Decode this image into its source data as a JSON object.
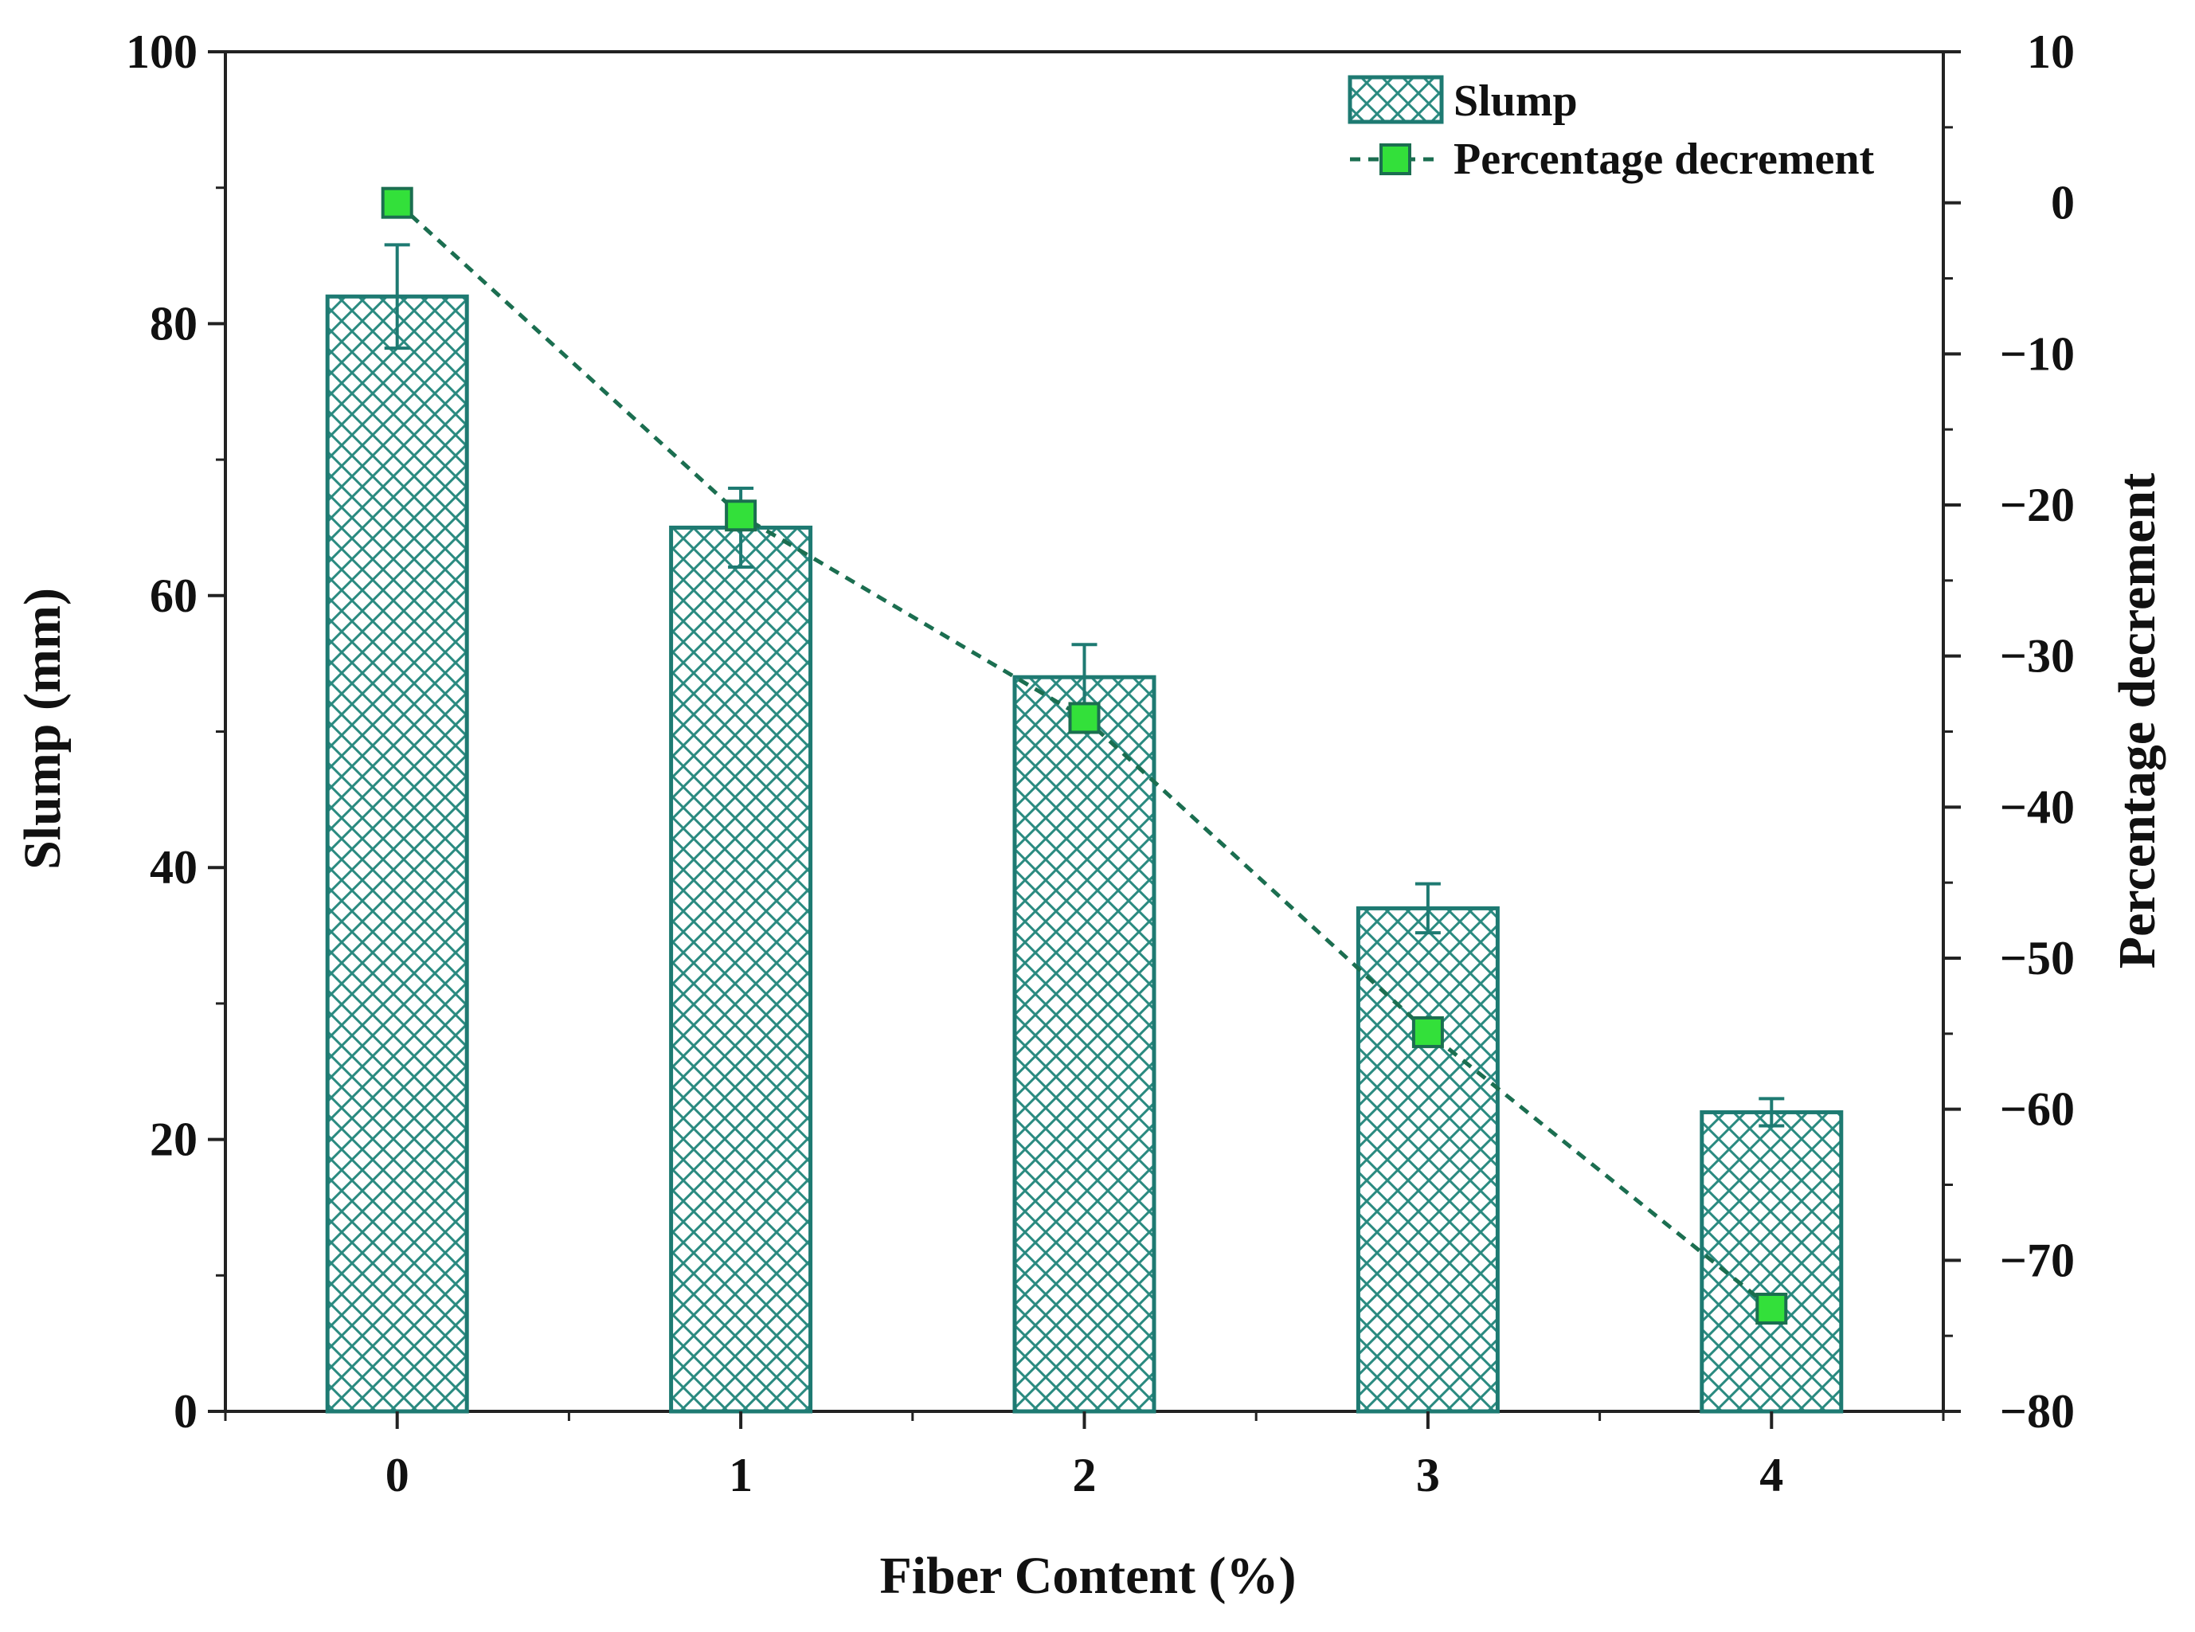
{
  "chart_data": {
    "type": "bar+line",
    "title": "",
    "xlabel": "Fiber Content (%)",
    "ylabel": "Slump (mm)",
    "y2label": "Percentage decrement",
    "categories": [
      "0",
      "1",
      "2",
      "3",
      "4"
    ],
    "ylim": [
      0,
      100
    ],
    "y2lim": [
      -80,
      10
    ],
    "yticks": [
      0,
      20,
      40,
      60,
      80,
      100
    ],
    "y2ticks": [
      -80,
      -70,
      -60,
      -50,
      -40,
      -30,
      -20,
      -10,
      0,
      10
    ],
    "y2tick_labels": [
      "−80",
      "−70",
      "−60",
      "−50",
      "−40",
      "−30",
      "−20",
      "−10",
      "0",
      "10"
    ],
    "series": [
      {
        "name": "Slump",
        "kind": "bar",
        "axis": "left",
        "values": [
          82,
          65,
          54,
          37,
          22
        ],
        "errors": [
          3.8,
          2.9,
          2.4,
          1.8,
          1.0
        ]
      },
      {
        "name": "Percentage decrement",
        "kind": "line",
        "axis": "right",
        "values": [
          0,
          -20.7,
          -34.1,
          -54.9,
          -73.2
        ]
      }
    ],
    "legend": {
      "position": "top-right",
      "entries": [
        "Slump",
        "Percentage decrement"
      ]
    },
    "grid": false
  },
  "colors": {
    "bar_edge": "#1e7a72",
    "hatch": "#2a8a80",
    "line": "#1b6e50",
    "marker_fill": "#33e03a",
    "marker_edge": "#1b6e50",
    "axis": "#222222"
  }
}
